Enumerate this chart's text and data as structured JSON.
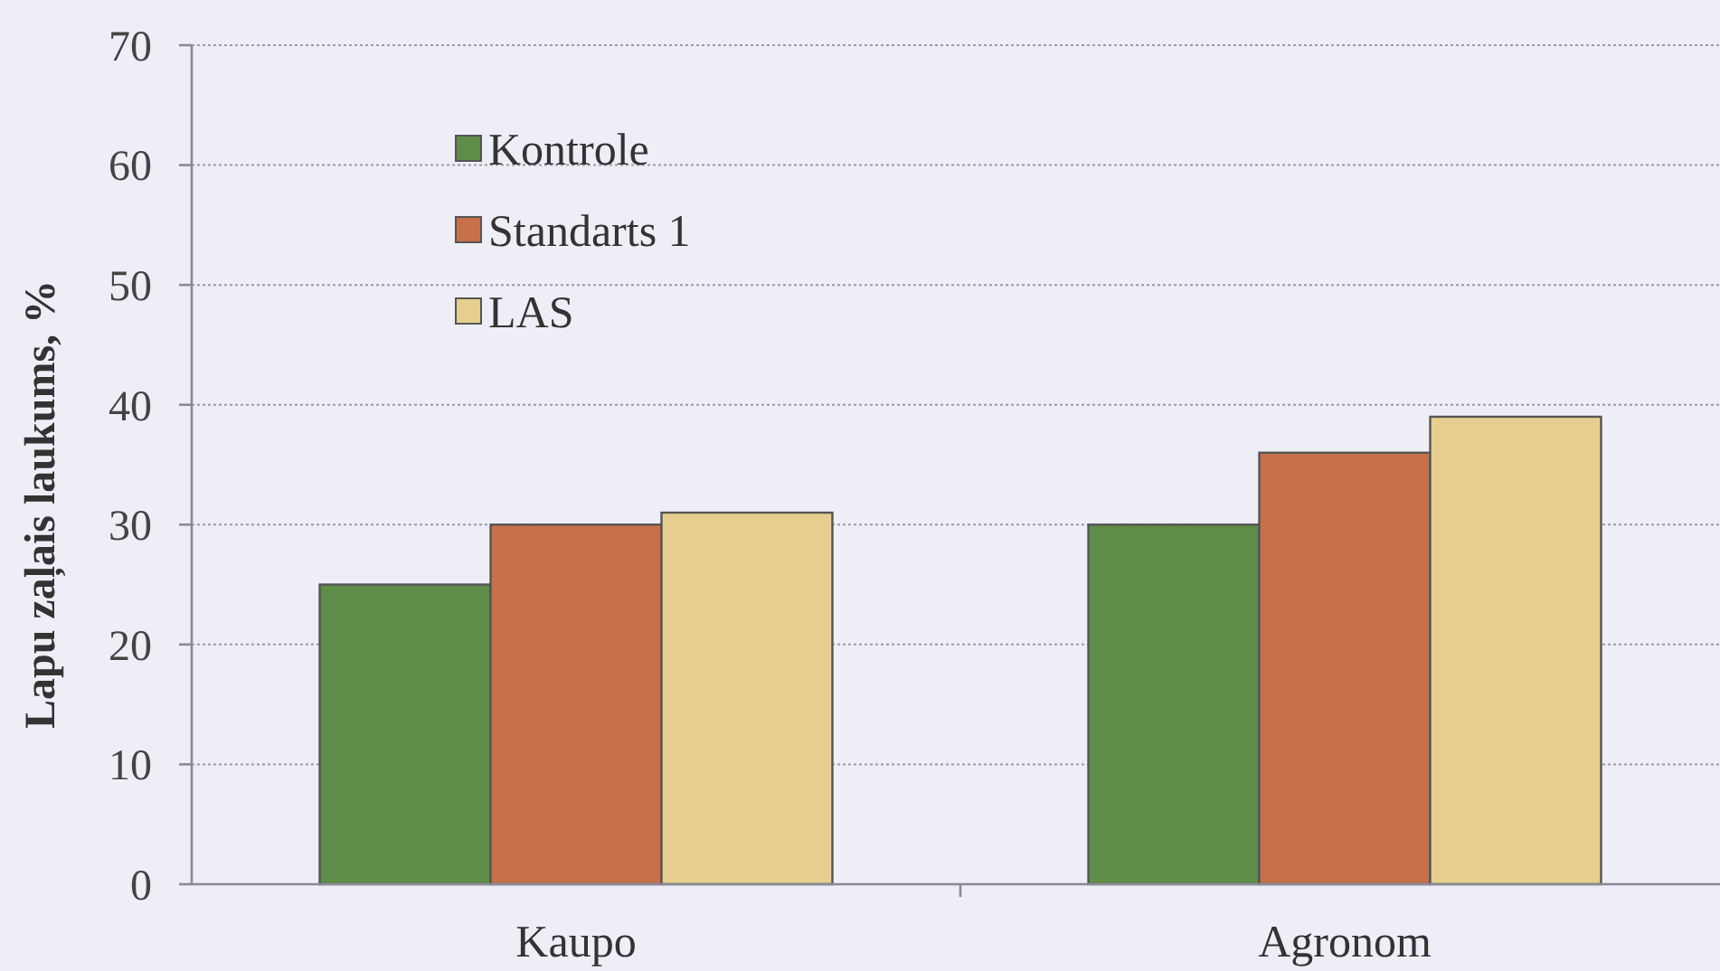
{
  "chart_data": {
    "type": "bar",
    "ylabel": "Lapu zaļais laukums, %",
    "categories": [
      "Kaupo",
      "Agronom"
    ],
    "series": [
      {
        "name": "Kontrole",
        "color": "#5f8c48",
        "values": [
          25,
          30
        ]
      },
      {
        "name": "Standarts 1",
        "color": "#c8704a",
        "values": [
          30,
          36
        ]
      },
      {
        "name": "LAS",
        "color": "#e6cf8e",
        "values": [
          31,
          39
        ]
      }
    ],
    "ylim": [
      0,
      70
    ],
    "yticks": [
      0,
      10,
      20,
      30,
      40,
      50,
      60,
      70
    ],
    "grid": "y",
    "legend": "top left"
  }
}
